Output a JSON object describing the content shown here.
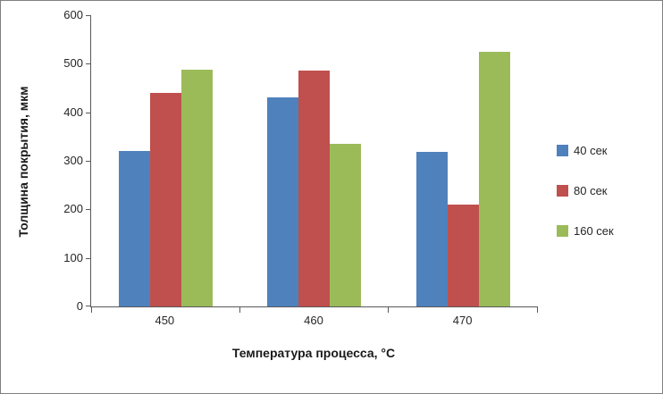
{
  "chart_data": {
    "type": "bar",
    "title": "",
    "xlabel": "Температура процесса, °C",
    "ylabel": "Толщина покрытия, мкм",
    "categories": [
      "450",
      "460",
      "470"
    ],
    "series": [
      {
        "name": "40 сек",
        "color": "#4f81bd",
        "values": [
          320,
          430,
          318
        ]
      },
      {
        "name": "80 сек",
        "color": "#c0504d",
        "values": [
          440,
          485,
          210
        ]
      },
      {
        "name": "160 сек",
        "color": "#9bbb59",
        "values": [
          487,
          335,
          525
        ]
      }
    ],
    "ylim": [
      0,
      600
    ],
    "ytick_step": 100,
    "ytick_labels": [
      "0",
      "100",
      "200",
      "300",
      "400",
      "500",
      "600"
    ],
    "grid": false,
    "legend_position": "right",
    "axis_color": "#595959",
    "text_color": "#262626"
  }
}
